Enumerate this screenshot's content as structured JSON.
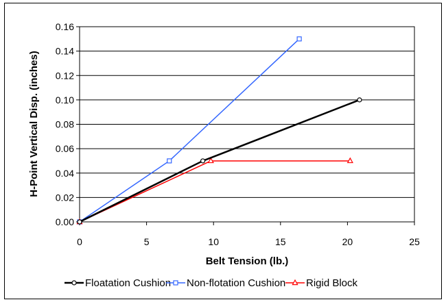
{
  "chart_data": {
    "type": "line",
    "xlabel": "Belt Tension (lb.)",
    "ylabel": "H-Point Vertical Disp. (inches)",
    "xlim": [
      0,
      25
    ],
    "ylim": [
      0,
      0.16
    ],
    "xticks": [
      0,
      5,
      10,
      15,
      20,
      25
    ],
    "yticks": [
      0.0,
      0.02,
      0.04,
      0.06,
      0.08,
      0.1,
      0.12,
      0.14,
      0.16
    ],
    "xtick_labels": [
      "0",
      "5",
      "10",
      "15",
      "20",
      "25"
    ],
    "ytick_labels": [
      "0.00",
      "0.02",
      "0.04",
      "0.06",
      "0.08",
      "0.10",
      "0.12",
      "0.14",
      "0.16"
    ],
    "grid": "horizontal",
    "legend_position": "bottom",
    "series": [
      {
        "name": "Floatation Cushion",
        "color": "#000000",
        "marker": "circle",
        "x": [
          0,
          9.2,
          20.9
        ],
        "y": [
          0,
          0.05,
          0.1
        ]
      },
      {
        "name": "Non-flotation Cushion",
        "color": "#3366ff",
        "marker": "square",
        "x": [
          0,
          6.7,
          16.4
        ],
        "y": [
          0,
          0.05,
          0.15
        ]
      },
      {
        "name": "Rigid Block",
        "color": "#ff0000",
        "marker": "triangle",
        "x": [
          0,
          9.8,
          20.2
        ],
        "y": [
          0,
          0.05,
          0.05
        ]
      }
    ]
  }
}
